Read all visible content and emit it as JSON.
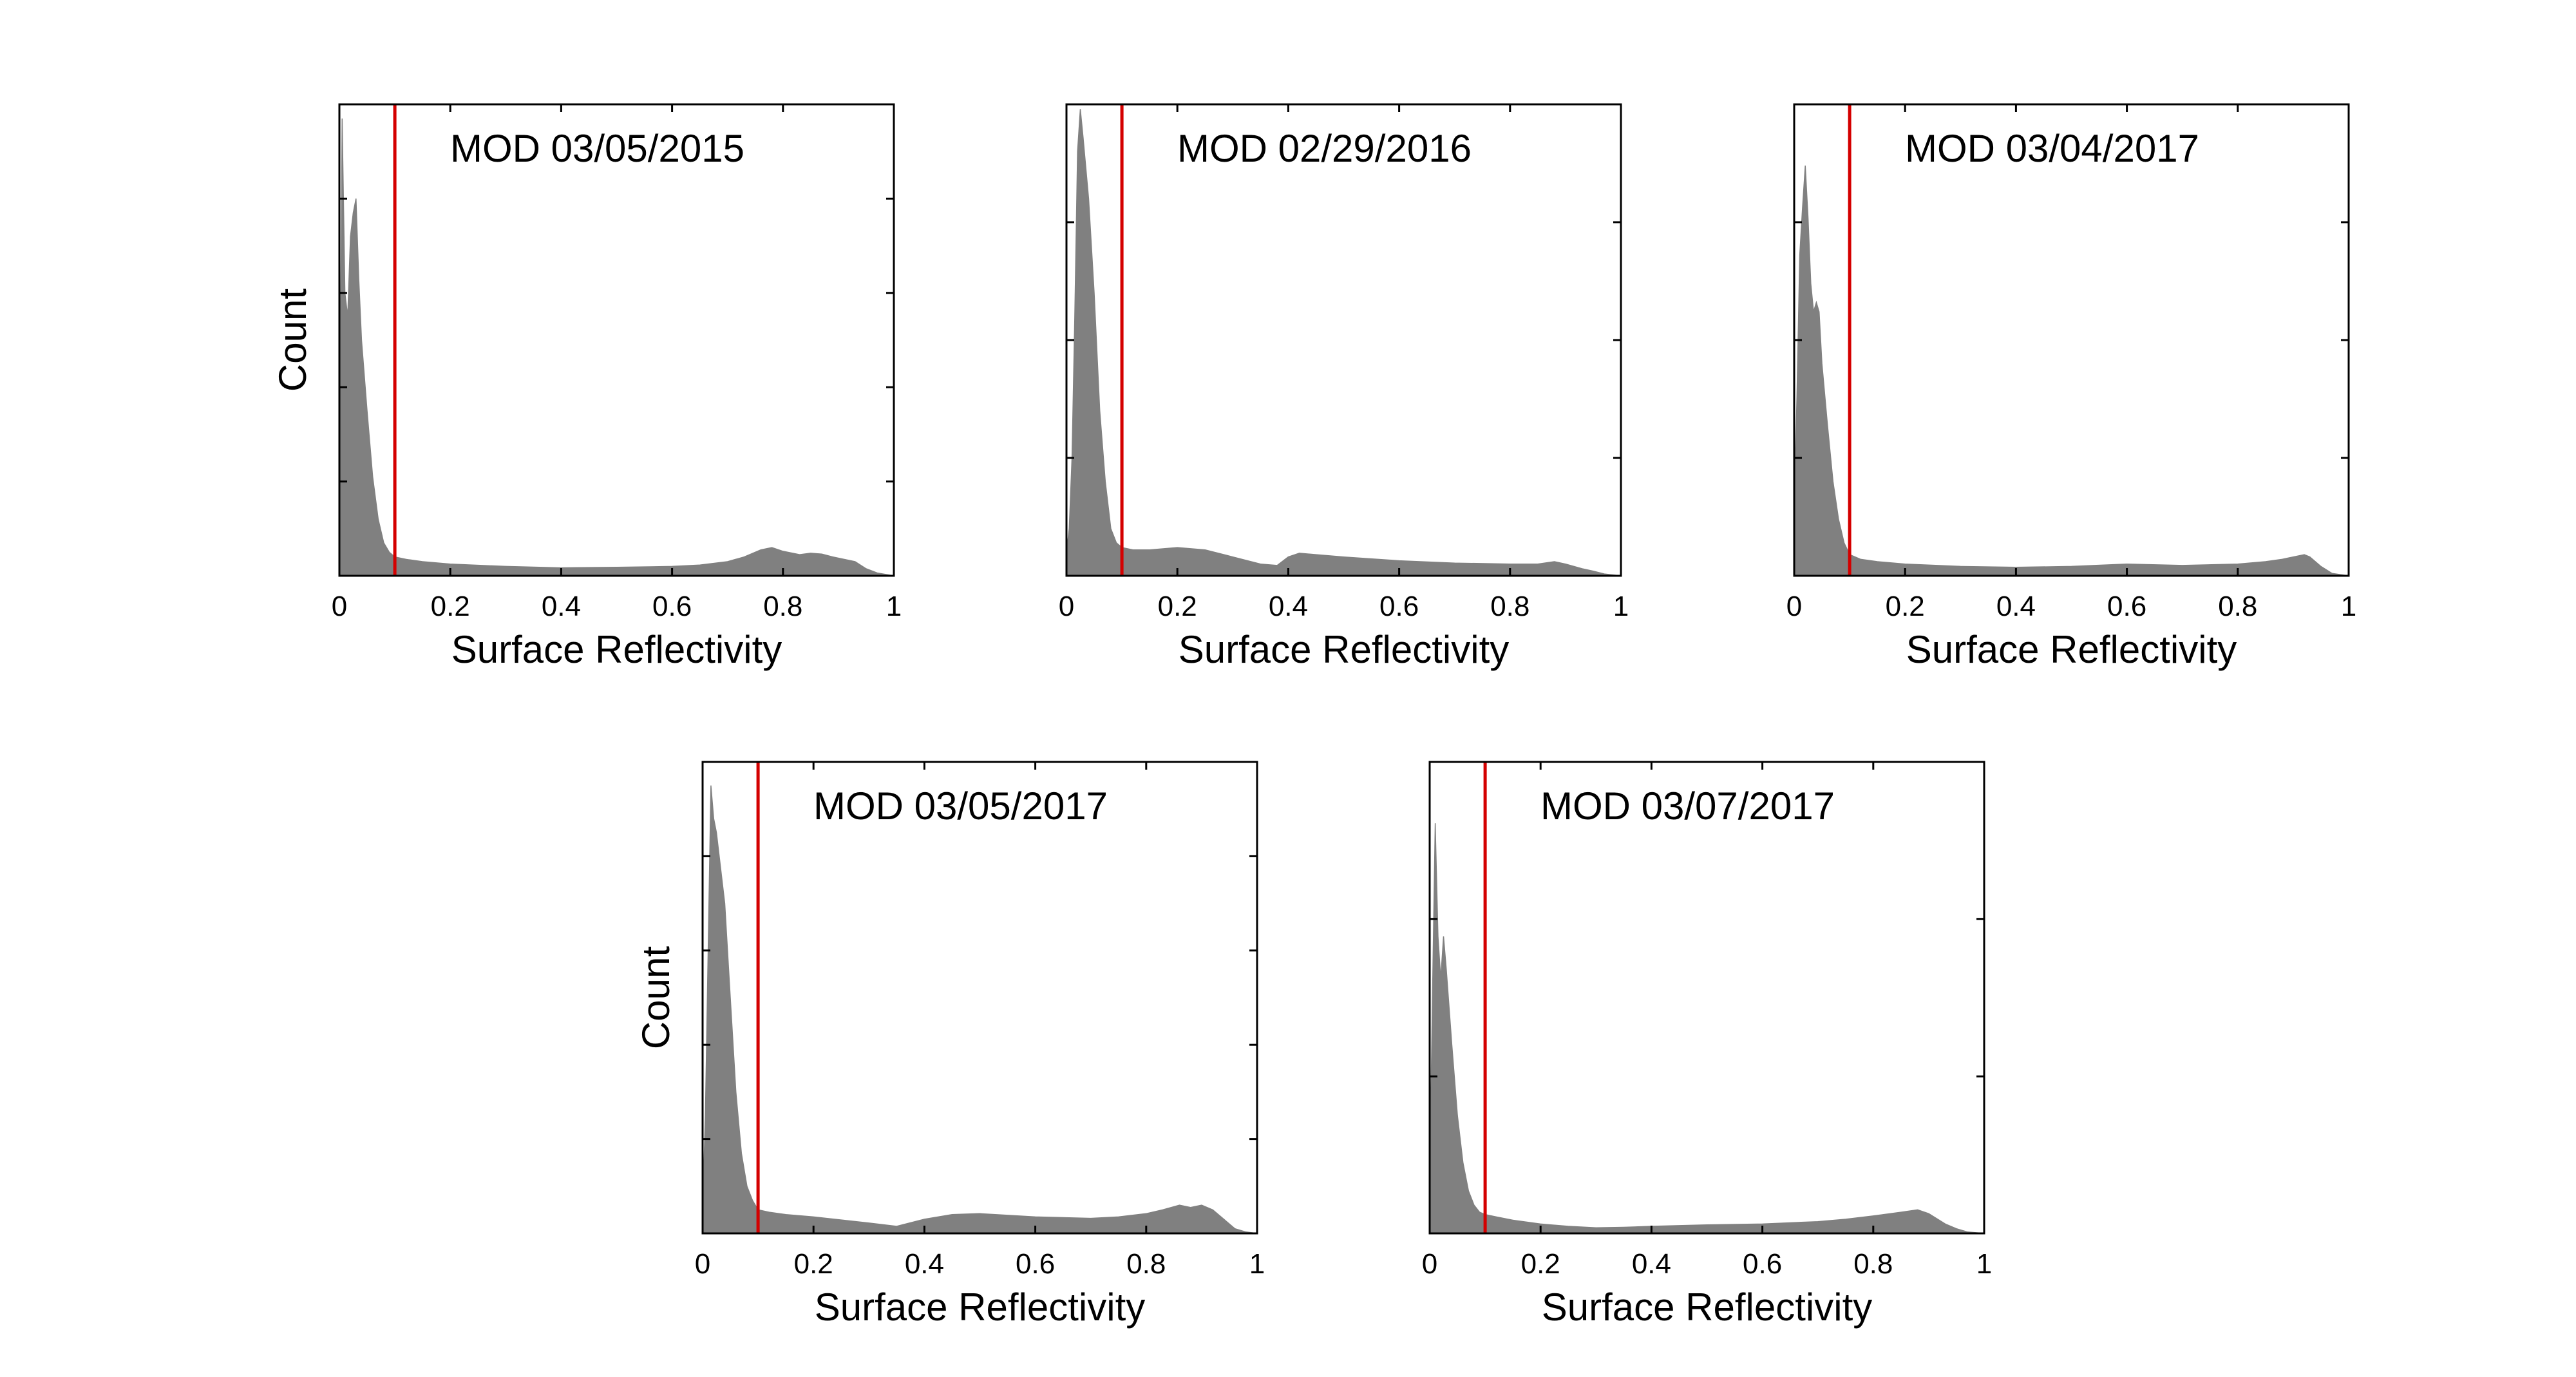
{
  "colors": {
    "histogram": "#808080",
    "threshold": "#d40000",
    "axes": "#000000"
  },
  "chart_data": [
    {
      "type": "area",
      "title": "MOD 03/05/2015",
      "xlabel": "Surface Reflectivity",
      "ylabel": "Count",
      "xlim": [
        0,
        1
      ],
      "ylim": [
        0,
        1
      ],
      "xticks": [
        "0",
        "0.2",
        "0.4",
        "0.6",
        "0.8",
        "1"
      ],
      "yticks": [
        0.2,
        0.4,
        0.6,
        0.8
      ],
      "ytick_labels_shown": false,
      "threshold_x": 0.1,
      "x": [
        0,
        0.005,
        0.01,
        0.015,
        0.02,
        0.025,
        0.03,
        0.035,
        0.04,
        0.05,
        0.06,
        0.07,
        0.08,
        0.09,
        0.1,
        0.12,
        0.15,
        0.2,
        0.3,
        0.4,
        0.5,
        0.6,
        0.65,
        0.7,
        0.73,
        0.76,
        0.78,
        0.8,
        0.83,
        0.85,
        0.87,
        0.89,
        0.91,
        0.93,
        0.95,
        0.97,
        1
      ],
      "values": [
        0.15,
        0.97,
        0.6,
        0.55,
        0.72,
        0.77,
        0.8,
        0.63,
        0.5,
        0.35,
        0.21,
        0.12,
        0.07,
        0.05,
        0.04,
        0.035,
        0.03,
        0.025,
        0.02,
        0.017,
        0.018,
        0.02,
        0.023,
        0.03,
        0.04,
        0.055,
        0.06,
        0.052,
        0.045,
        0.048,
        0.046,
        0.04,
        0.035,
        0.03,
        0.015,
        0.006,
        0
      ]
    },
    {
      "type": "area",
      "title": "MOD 02/29/2016",
      "xlabel": "Surface Reflectivity",
      "ylabel": "",
      "xlim": [
        0,
        1
      ],
      "ylim": [
        0,
        1
      ],
      "xticks": [
        "0",
        "0.2",
        "0.4",
        "0.6",
        "0.8",
        "1"
      ],
      "yticks": [
        0.25,
        0.5,
        0.75
      ],
      "ytick_labels_shown": false,
      "threshold_x": 0.1,
      "x": [
        0,
        0.005,
        0.01,
        0.015,
        0.02,
        0.025,
        0.03,
        0.04,
        0.05,
        0.06,
        0.07,
        0.08,
        0.09,
        0.1,
        0.12,
        0.15,
        0.2,
        0.25,
        0.3,
        0.35,
        0.38,
        0.4,
        0.42,
        0.45,
        0.5,
        0.6,
        0.7,
        0.8,
        0.85,
        0.88,
        0.9,
        0.93,
        0.95,
        0.97,
        1
      ],
      "values": [
        0.05,
        0.1,
        0.25,
        0.55,
        0.9,
        0.99,
        0.93,
        0.8,
        0.6,
        0.35,
        0.2,
        0.1,
        0.07,
        0.06,
        0.055,
        0.055,
        0.06,
        0.055,
        0.04,
        0.025,
        0.022,
        0.04,
        0.048,
        0.045,
        0.04,
        0.032,
        0.027,
        0.025,
        0.025,
        0.03,
        0.025,
        0.015,
        0.01,
        0.004,
        0
      ]
    },
    {
      "type": "area",
      "title": "MOD 03/04/2017",
      "xlabel": "Surface Reflectivity",
      "ylabel": "",
      "xlim": [
        0,
        1
      ],
      "ylim": [
        0,
        1
      ],
      "xticks": [
        "0",
        "0.2",
        "0.4",
        "0.6",
        "0.8",
        "1"
      ],
      "yticks": [
        0.25,
        0.5,
        0.75
      ],
      "ytick_labels_shown": false,
      "threshold_x": 0.1,
      "x": [
        0,
        0.005,
        0.01,
        0.015,
        0.02,
        0.025,
        0.03,
        0.035,
        0.04,
        0.045,
        0.05,
        0.06,
        0.07,
        0.08,
        0.09,
        0.1,
        0.12,
        0.15,
        0.2,
        0.3,
        0.4,
        0.5,
        0.6,
        0.7,
        0.8,
        0.85,
        0.88,
        0.9,
        0.92,
        0.93,
        0.95,
        0.97,
        1
      ],
      "values": [
        0.15,
        0.38,
        0.68,
        0.78,
        0.87,
        0.76,
        0.62,
        0.56,
        0.58,
        0.56,
        0.45,
        0.32,
        0.2,
        0.12,
        0.07,
        0.045,
        0.035,
        0.03,
        0.025,
        0.02,
        0.018,
        0.02,
        0.025,
        0.022,
        0.025,
        0.03,
        0.035,
        0.04,
        0.045,
        0.04,
        0.02,
        0.005,
        0
      ]
    },
    {
      "type": "area",
      "title": "MOD 03/05/2017",
      "xlabel": "Surface Reflectivity",
      "ylabel": "Count",
      "xlim": [
        0,
        1
      ],
      "ylim": [
        0,
        1
      ],
      "xticks": [
        "0",
        "0.2",
        "0.4",
        "0.6",
        "0.8",
        "1"
      ],
      "yticks": [
        0.2,
        0.4,
        0.6,
        0.8
      ],
      "ytick_labels_shown": false,
      "threshold_x": 0.1,
      "x": [
        0,
        0.005,
        0.01,
        0.015,
        0.02,
        0.025,
        0.03,
        0.04,
        0.05,
        0.06,
        0.07,
        0.08,
        0.09,
        0.1,
        0.12,
        0.15,
        0.2,
        0.3,
        0.35,
        0.4,
        0.45,
        0.5,
        0.6,
        0.7,
        0.75,
        0.8,
        0.83,
        0.86,
        0.88,
        0.9,
        0.92,
        0.94,
        0.96,
        0.98,
        1
      ],
      "values": [
        0.05,
        0.25,
        0.6,
        0.95,
        0.88,
        0.85,
        0.8,
        0.7,
        0.5,
        0.3,
        0.17,
        0.1,
        0.07,
        0.05,
        0.045,
        0.04,
        0.035,
        0.022,
        0.015,
        0.03,
        0.04,
        0.042,
        0.035,
        0.032,
        0.035,
        0.042,
        0.05,
        0.06,
        0.055,
        0.06,
        0.05,
        0.03,
        0.01,
        0.003,
        0
      ]
    },
    {
      "type": "area",
      "title": "MOD 03/07/2017",
      "xlabel": "Surface Reflectivity",
      "ylabel": "",
      "xlim": [
        0,
        1
      ],
      "ylim": [
        0,
        1
      ],
      "xticks": [
        "0",
        "0.2",
        "0.4",
        "0.6",
        "0.8",
        "1"
      ],
      "yticks": [
        0.333,
        0.667
      ],
      "ytick_labels_shown": false,
      "threshold_x": 0.1,
      "x": [
        0,
        0.005,
        0.01,
        0.015,
        0.02,
        0.025,
        0.03,
        0.035,
        0.04,
        0.05,
        0.06,
        0.07,
        0.08,
        0.09,
        0.1,
        0.12,
        0.15,
        0.2,
        0.25,
        0.3,
        0.35,
        0.4,
        0.5,
        0.6,
        0.7,
        0.75,
        0.8,
        0.85,
        0.88,
        0.9,
        0.93,
        0.95,
        0.97,
        1
      ],
      "values": [
        0.1,
        0.5,
        0.87,
        0.63,
        0.54,
        0.63,
        0.56,
        0.48,
        0.4,
        0.25,
        0.15,
        0.09,
        0.06,
        0.045,
        0.04,
        0.035,
        0.028,
        0.02,
        0.015,
        0.012,
        0.013,
        0.015,
        0.018,
        0.02,
        0.025,
        0.03,
        0.037,
        0.045,
        0.05,
        0.042,
        0.02,
        0.01,
        0.003,
        0
      ]
    }
  ]
}
